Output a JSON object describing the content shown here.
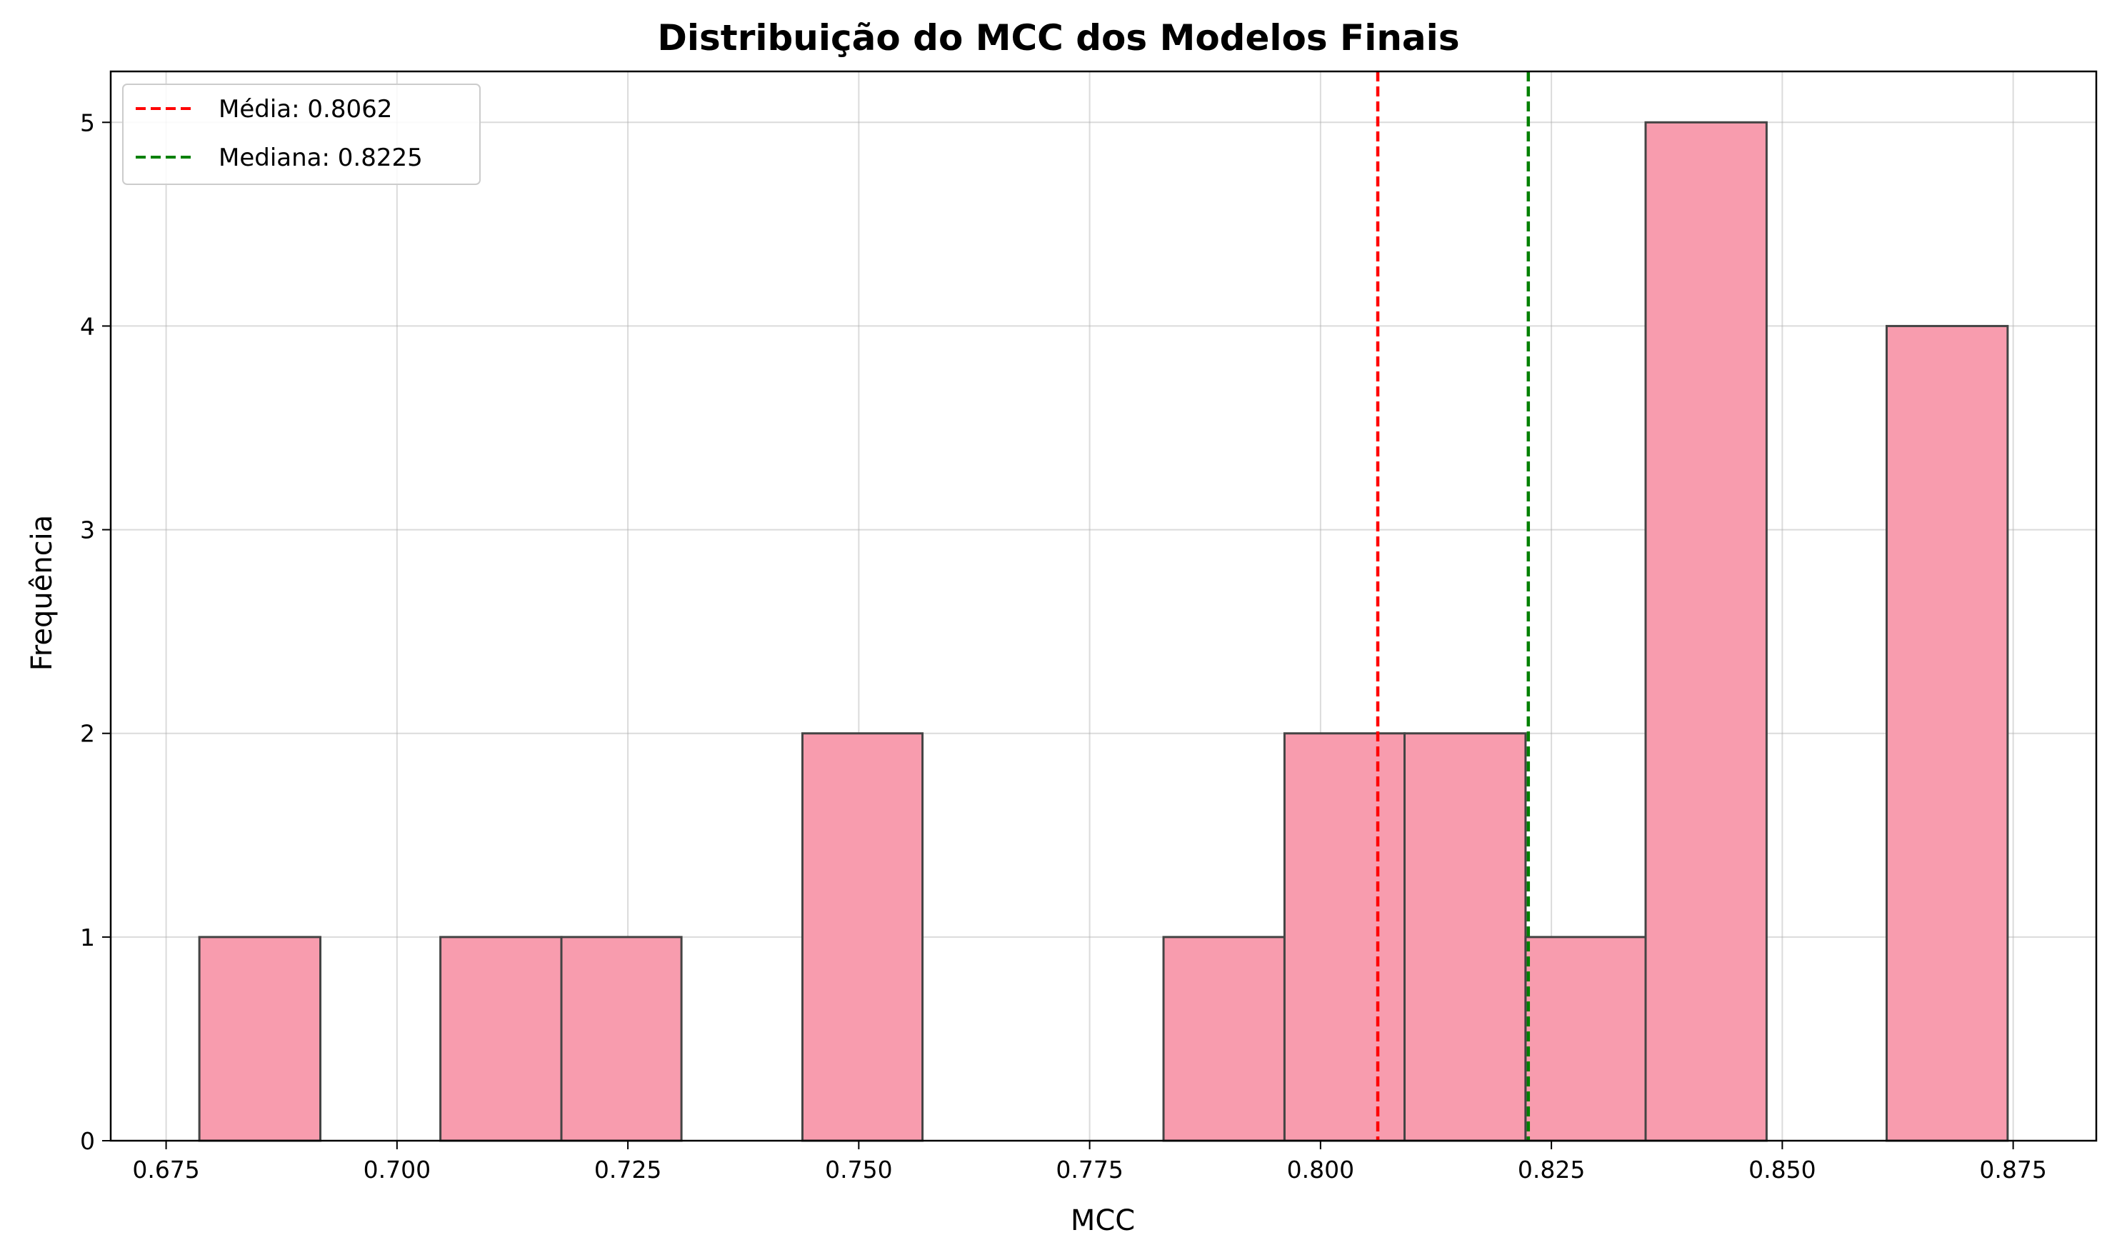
{
  "chart_data": {
    "type": "histogram",
    "title": "Distribuição do MCC dos Modelos Finais",
    "xlabel": "MCC",
    "ylabel": "Frequência",
    "xlim": [
      0.669,
      0.884
    ],
    "ylim": [
      0,
      5.25
    ],
    "xticks": [
      "0.675",
      "0.700",
      "0.725",
      "0.750",
      "0.775",
      "0.800",
      "0.825",
      "0.850",
      "0.875"
    ],
    "xtick_values": [
      0.675,
      0.7,
      0.725,
      0.75,
      0.775,
      0.8,
      0.825,
      0.85,
      0.875
    ],
    "yticks": [
      "0",
      "1",
      "2",
      "3",
      "4",
      "5"
    ],
    "ytick_values": [
      0,
      1,
      2,
      3,
      4,
      5
    ],
    "bin_edges": [
      0.6786,
      0.6917,
      0.7047,
      0.7178,
      0.7308,
      0.7439,
      0.7569,
      0.77,
      0.783,
      0.7961,
      0.8091,
      0.8222,
      0.8352,
      0.8483,
      0.8613,
      0.8744
    ],
    "counts": [
      1,
      0,
      1,
      1,
      0,
      2,
      0,
      0,
      1,
      2,
      2,
      1,
      5,
      0,
      4
    ],
    "bar_color": "#f89cae",
    "edge_color": "#444444",
    "grid": true,
    "legend_position": "top-left",
    "reference_lines": [
      {
        "label": "Média: 0.8062",
        "value": 0.8062,
        "color": "#ff0000",
        "style": "dashed"
      },
      {
        "label": "Mediana: 0.8225",
        "value": 0.8225,
        "color": "#008000",
        "style": "dashed"
      }
    ]
  }
}
